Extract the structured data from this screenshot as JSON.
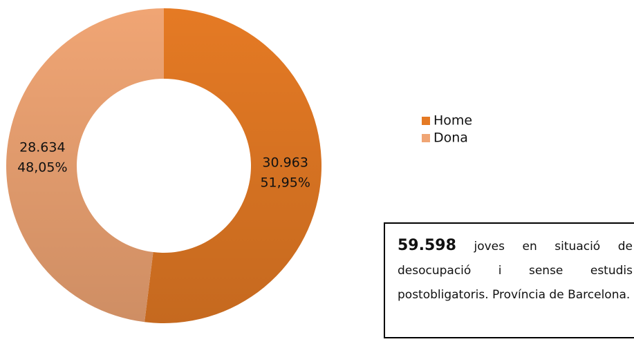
{
  "chart_data": {
    "type": "donut",
    "categories": [
      "Home",
      "Dona"
    ],
    "values": [
      30963,
      28634
    ],
    "value_labels": [
      "30.963",
      "28.634"
    ],
    "percentages": [
      51.95,
      48.05
    ],
    "percentage_labels": [
      "51,95%",
      "48,05%"
    ],
    "colors": [
      "#e57a24",
      "#f0a574"
    ],
    "legend": "right",
    "annotation": {
      "value_label": "59.598",
      "text": "joves en situació de desocupació i sense estudis postobligatoris. Província de Barcelona."
    }
  }
}
